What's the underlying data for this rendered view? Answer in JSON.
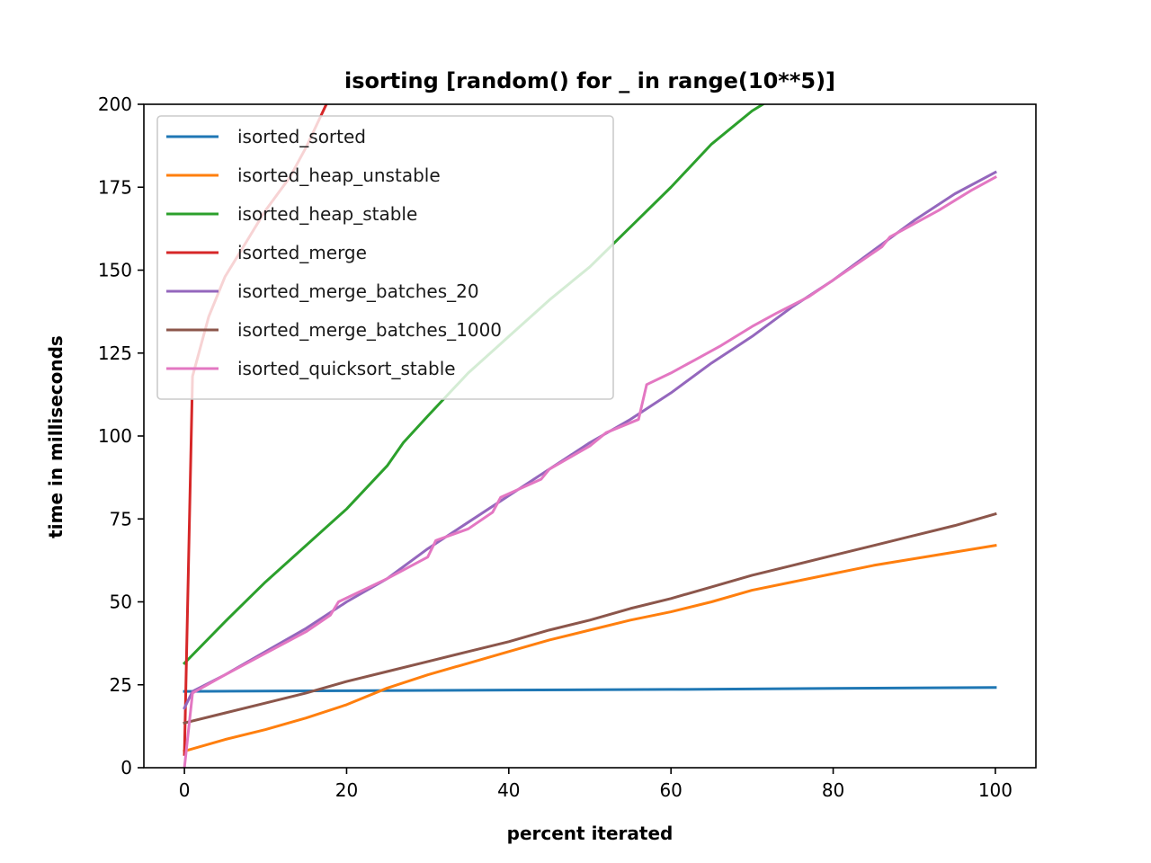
{
  "chart_data": {
    "type": "line",
    "title": "isorting [random() for _ in range(10**5)]",
    "xlabel": "percent iterated",
    "ylabel": "time in milliseconds",
    "xlim": [
      -5,
      105
    ],
    "ylim": [
      0,
      200
    ],
    "xticks": [
      "0",
      "20",
      "40",
      "60",
      "80",
      "100"
    ],
    "yticks": [
      "0",
      "25",
      "50",
      "75",
      "100",
      "125",
      "150",
      "175",
      "200"
    ],
    "grid": false,
    "legend_position": "top-left",
    "series": [
      {
        "name": "isorted_sorted",
        "color": "#1f77b4",
        "points": [
          [
            0,
            23
          ],
          [
            20,
            23.2
          ],
          [
            40,
            23.4
          ],
          [
            60,
            23.6
          ],
          [
            80,
            23.9
          ],
          [
            100,
            24.2
          ]
        ]
      },
      {
        "name": "isorted_heap_unstable",
        "color": "#ff7f0e",
        "points": [
          [
            0,
            5
          ],
          [
            5,
            8.5
          ],
          [
            10,
            11.5
          ],
          [
            15,
            15
          ],
          [
            20,
            19
          ],
          [
            25,
            24
          ],
          [
            30,
            28
          ],
          [
            35,
            31.5
          ],
          [
            40,
            35
          ],
          [
            45,
            38.5
          ],
          [
            50,
            41.5
          ],
          [
            55,
            44.5
          ],
          [
            60,
            47
          ],
          [
            65,
            50
          ],
          [
            70,
            53.5
          ],
          [
            75,
            56
          ],
          [
            80,
            58.5
          ],
          [
            85,
            61
          ],
          [
            90,
            63
          ],
          [
            95,
            65
          ],
          [
            100,
            67
          ]
        ]
      },
      {
        "name": "isorted_heap_stable",
        "color": "#2ca02c",
        "points": [
          [
            0,
            31.5
          ],
          [
            5,
            44
          ],
          [
            10,
            56
          ],
          [
            15,
            67
          ],
          [
            20,
            78
          ],
          [
            25,
            91
          ],
          [
            27,
            98
          ],
          [
            30,
            106
          ],
          [
            35,
            119
          ],
          [
            40,
            130
          ],
          [
            45,
            141
          ],
          [
            50,
            151
          ],
          [
            55,
            163
          ],
          [
            60,
            175
          ],
          [
            65,
            188
          ],
          [
            70,
            198
          ],
          [
            72,
            201
          ]
        ]
      },
      {
        "name": "isorted_merge",
        "color": "#d62728",
        "points": [
          [
            0,
            4
          ],
          [
            1,
            118
          ],
          [
            3,
            136
          ],
          [
            5,
            148
          ],
          [
            8,
            160
          ],
          [
            10,
            168
          ],
          [
            13,
            178
          ],
          [
            15,
            187
          ],
          [
            17.5,
            200
          ]
        ]
      },
      {
        "name": "isorted_merge_batches_20",
        "color": "#9467bd",
        "points": [
          [
            0,
            18
          ],
          [
            1,
            23
          ],
          [
            5,
            28
          ],
          [
            10,
            35
          ],
          [
            15,
            42
          ],
          [
            20,
            50
          ],
          [
            25,
            57
          ],
          [
            30,
            66
          ],
          [
            35,
            74
          ],
          [
            40,
            82
          ],
          [
            45,
            90
          ],
          [
            50,
            98
          ],
          [
            55,
            105
          ],
          [
            60,
            113
          ],
          [
            65,
            122
          ],
          [
            70,
            130
          ],
          [
            75,
            139
          ],
          [
            80,
            147
          ],
          [
            85,
            156
          ],
          [
            90,
            165
          ],
          [
            95,
            173
          ],
          [
            100,
            179.5
          ]
        ]
      },
      {
        "name": "isorted_merge_batches_1000",
        "color": "#8c564b",
        "points": [
          [
            0,
            13.5
          ],
          [
            5,
            16.5
          ],
          [
            10,
            19.5
          ],
          [
            15,
            22.5
          ],
          [
            20,
            26
          ],
          [
            25,
            29
          ],
          [
            30,
            32
          ],
          [
            35,
            35
          ],
          [
            40,
            38
          ],
          [
            45,
            41.5
          ],
          [
            50,
            44.5
          ],
          [
            55,
            48
          ],
          [
            60,
            51
          ],
          [
            65,
            54.5
          ],
          [
            70,
            58
          ],
          [
            75,
            61
          ],
          [
            80,
            64
          ],
          [
            85,
            67
          ],
          [
            90,
            70
          ],
          [
            95,
            73
          ],
          [
            100,
            76.5
          ]
        ]
      },
      {
        "name": "isorted_quicksort_stable",
        "color": "#e377c2",
        "points": [
          [
            0,
            0
          ],
          [
            1,
            22.5
          ],
          [
            5,
            28
          ],
          [
            10,
            34.5
          ],
          [
            15,
            41
          ],
          [
            18,
            46
          ],
          [
            19,
            50
          ],
          [
            25,
            57
          ],
          [
            30,
            63.5
          ],
          [
            31,
            68.5
          ],
          [
            35,
            72
          ],
          [
            38,
            77
          ],
          [
            39,
            81.5
          ],
          [
            44,
            87
          ],
          [
            45,
            90
          ],
          [
            50,
            97
          ],
          [
            52,
            101
          ],
          [
            56,
            105
          ],
          [
            57,
            115.5
          ],
          [
            60,
            119
          ],
          [
            63,
            123
          ],
          [
            66,
            127
          ],
          [
            70,
            133
          ],
          [
            73,
            137
          ],
          [
            77,
            142
          ],
          [
            80,
            147
          ],
          [
            83,
            152
          ],
          [
            86,
            157
          ],
          [
            87,
            160
          ],
          [
            90,
            164
          ],
          [
            93,
            168
          ],
          [
            97,
            174
          ],
          [
            100,
            178
          ]
        ]
      }
    ]
  }
}
